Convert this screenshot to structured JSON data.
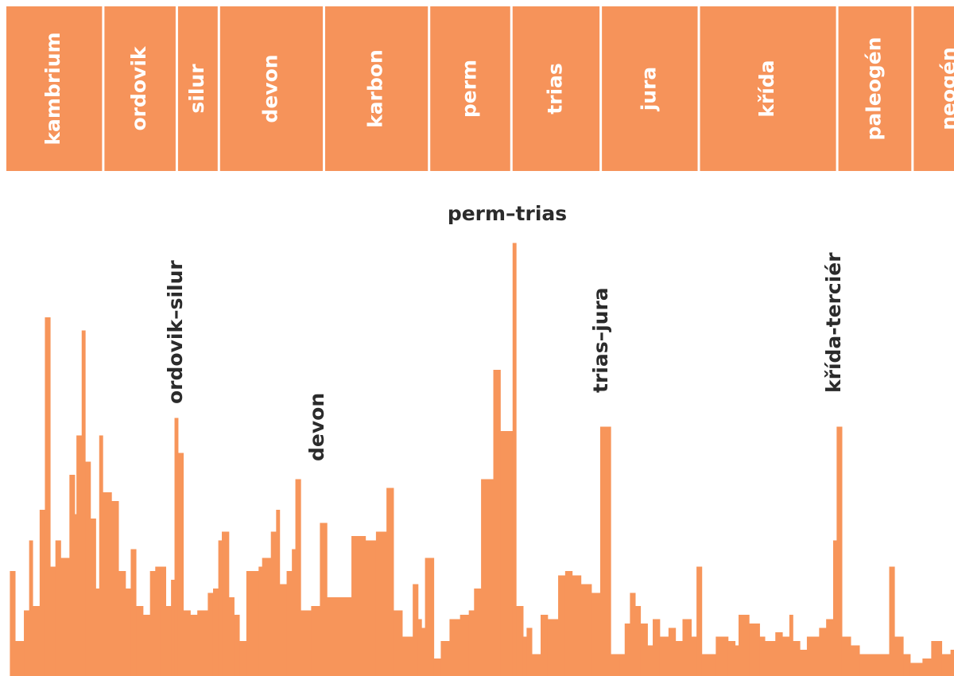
{
  "chart_data": {
    "type": "step",
    "periods": [
      {
        "name": "kambrium",
        "start": 541
      },
      {
        "name": "ordovik",
        "start": 485
      },
      {
        "name": "silur",
        "start": 443
      },
      {
        "name": "devon",
        "start": 419
      },
      {
        "name": "karbon",
        "start": 359
      },
      {
        "name": "perm",
        "start": 299
      },
      {
        "name": "trias",
        "start": 252
      },
      {
        "name": "jura",
        "start": 201
      },
      {
        "name": "křída",
        "start": 145
      },
      {
        "name": "paleogén",
        "start": 66
      },
      {
        "name": "neogén",
        "start": 23
      }
    ],
    "annotations": [
      "ordovik–silur",
      "devon",
      "perm–trias",
      "trias–jura",
      "křída-terciér"
    ],
    "xlim": [
      541,
      0
    ],
    "ylim": [
      0,
      100
    ],
    "color": "#f7955a",
    "header_color": "#f6935a",
    "x": [
      539,
      536,
      531,
      528,
      526,
      522,
      519,
      516,
      513,
      510,
      505,
      502,
      501,
      498,
      496,
      493,
      490,
      488,
      486,
      481,
      477,
      473,
      470,
      467,
      463,
      459,
      456,
      453,
      450,
      447,
      445,
      443,
      440,
      436,
      432,
      426,
      423,
      420,
      418,
      414,
      411,
      408,
      404,
      397,
      395,
      390,
      387,
      385,
      381,
      378,
      376,
      373,
      367,
      362,
      358,
      349,
      344,
      336,
      330,
      324,
      320,
      315,
      309,
      306,
      304,
      302,
      297,
      293,
      288,
      282,
      277,
      274,
      270,
      263,
      259,
      252,
      250,
      246,
      244,
      241,
      236,
      232,
      226,
      222,
      218,
      213,
      207,
      202,
      196,
      191,
      188,
      185,
      182,
      179,
      175,
      172,
      168,
      163,
      159,
      155,
      150,
      147,
      144,
      136,
      129,
      125,
      123,
      117,
      111,
      108,
      102,
      98,
      94,
      92,
      88,
      84,
      77,
      73,
      69,
      67,
      64,
      59,
      54,
      45,
      37,
      34,
      29,
      25,
      18,
      13,
      7,
      2
    ],
    "values": [
      24,
      8,
      15,
      31,
      16,
      38,
      82,
      25,
      31,
      27,
      46,
      37,
      55,
      79,
      49,
      36,
      20,
      55,
      42,
      40,
      24,
      20,
      29,
      16,
      14,
      24,
      25,
      25,
      16,
      22,
      59,
      51,
      15,
      14,
      15,
      19,
      20,
      31,
      33,
      18,
      14,
      8,
      24,
      25,
      27,
      33,
      38,
      21,
      24,
      29,
      45,
      15,
      16,
      35,
      18,
      18,
      32,
      31,
      33,
      43,
      15,
      9,
      21,
      13,
      11,
      27,
      4,
      8,
      13,
      14,
      15,
      20,
      45,
      70,
      56,
      99,
      16,
      9,
      11,
      5,
      14,
      13,
      23,
      24,
      23,
      21,
      19,
      57,
      5,
      5,
      12,
      19,
      16,
      12,
      7,
      13,
      9,
      11,
      8,
      13,
      9,
      25,
      5,
      9,
      8,
      7,
      14,
      12,
      9,
      8,
      10,
      9,
      14,
      8,
      6,
      9,
      11,
      13,
      31,
      57,
      9,
      7,
      5,
      5,
      25,
      9,
      5,
      3,
      4,
      8,
      5,
      6
    ]
  }
}
